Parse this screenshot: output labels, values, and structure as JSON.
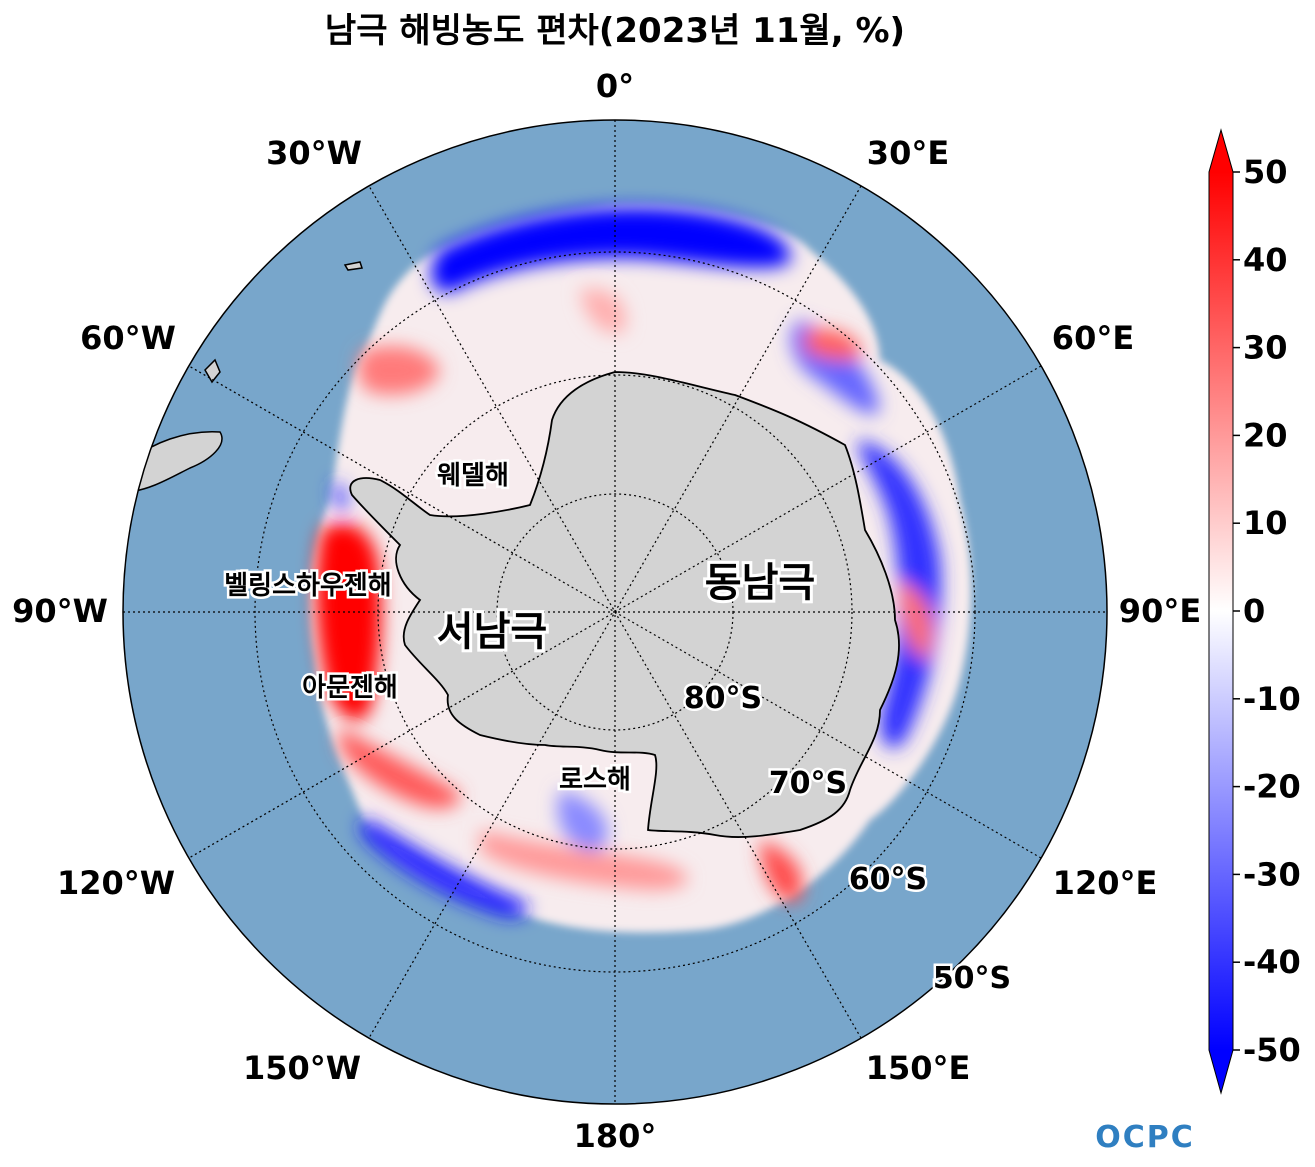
{
  "title": "남극 해빙농도 편차(2023년 11월, %)",
  "colors": {
    "ocean": "#78a6cb",
    "land": "#d3d3d3",
    "positive": "#ff0000",
    "negative": "#0000ff",
    "neutral": "#ffffff"
  },
  "map": {
    "projection": "south-polar-stereographic",
    "lon_labels": [
      "0°",
      "30°E",
      "60°E",
      "90°E",
      "120°E",
      "150°E",
      "180°",
      "150°W",
      "120°W",
      "90°W",
      "60°W",
      "30°W"
    ],
    "lat_labels": [
      "80°S",
      "70°S",
      "60°S",
      "50°S"
    ],
    "regions": [
      "서남극",
      "동남극"
    ],
    "seas": [
      "웨델해",
      "벨링스하우젠해",
      "아문젠해",
      "로스해"
    ]
  },
  "colorbar": {
    "min": -50,
    "max": 50,
    "ticks": [
      "50",
      "40",
      "30",
      "20",
      "10",
      "0",
      "-10",
      "-20",
      "-30",
      "-40",
      "-50"
    ],
    "colormap": "bwr"
  },
  "logo": "OCPC"
}
